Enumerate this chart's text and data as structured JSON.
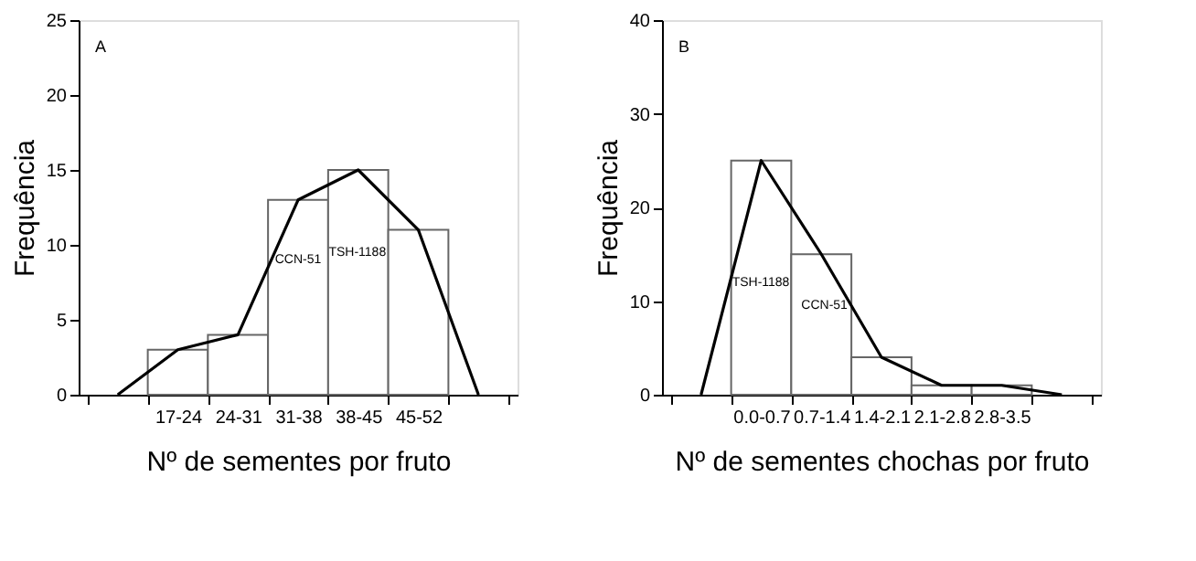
{
  "chart_data": [
    {
      "type": "bar",
      "xlabel": "Nº de sementes por fruto",
      "ylabel": "Frequência",
      "categories": [
        null,
        "17-24",
        "24-31",
        "31-38",
        "38-45",
        "45-52",
        null
      ],
      "series": [
        {
          "color": "#ffffff",
          "values": [
            null,
            3,
            4,
            13,
            15,
            11,
            null
          ]
        },
        {
          "type": "line",
          "color": "#000000",
          "values": [
            0,
            3,
            4,
            13,
            15,
            11,
            0
          ]
        }
      ],
      "ylim": [
        0,
        25
      ],
      "yticks": [
        0,
        5,
        10,
        15,
        20,
        25
      ],
      "grid": false,
      "marker": "none",
      "annotations": [
        "A",
        "CCN-51",
        "TSH-1188"
      ]
    },
    {
      "type": "bar",
      "xlabel": "Nº de sementes chochas por fruto",
      "ylabel": "Frequência",
      "categories": [
        null,
        "0.0-0.7",
        "0.7-1.4",
        "1.4-2.1",
        "2.1-2.8",
        "2.8-3.5",
        null
      ],
      "series": [
        {
          "color": "#ffffff",
          "values": [
            null,
            25,
            15,
            4,
            1,
            1,
            null
          ]
        },
        {
          "type": "line",
          "color": "#000000",
          "values": [
            0,
            25,
            15,
            4,
            1,
            1,
            0
          ]
        }
      ],
      "ylim": [
        0,
        40
      ],
      "yticks": [
        0,
        10,
        20,
        30,
        40
      ],
      "grid": false,
      "marker": "none",
      "annotations": [
        "B",
        "TSH-1188",
        "CCN-51"
      ]
    }
  ]
}
